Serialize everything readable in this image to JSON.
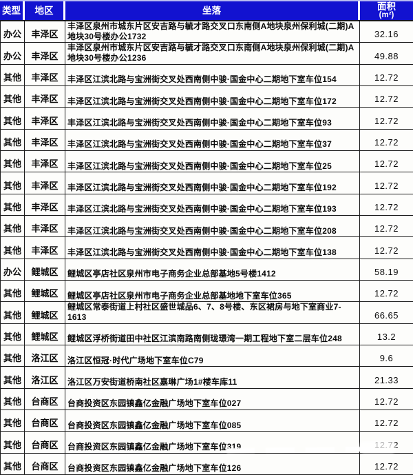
{
  "colors": {
    "header_bg": "#1212d0",
    "header_text": "#ffffff",
    "grid": "#1c1c1c",
    "body_bg": "#fdfdfb",
    "text": "#0b0b0b"
  },
  "table": {
    "header": {
      "type": "类型",
      "district": "地区",
      "location": "坐落",
      "area_line1": "面积",
      "area_line2": "(m²)"
    },
    "rows": [
      {
        "type": "办公",
        "district": "丰泽区",
        "location": "丰泽区泉州市城东片区安吉路与毓才路交叉口东南侧A地块泉州保利城(二期)A地块30号楼办公1732",
        "area": "32.16"
      },
      {
        "type": "办公",
        "district": "丰泽区",
        "location": "丰泽区泉州市城东片区安吉路与毓才路交叉口东南侧A地块泉州保利城(二期)A地块30号楼办公1236",
        "area": "49.88"
      },
      {
        "type": "其他",
        "district": "丰泽区",
        "location": "丰泽区江滨北路与宝洲街交叉处西南侧中骏·国金中心二期地下室车位154",
        "area": "12.72"
      },
      {
        "type": "其他",
        "district": "丰泽区",
        "location": "丰泽区江滨北路与宝洲街交叉处西南侧中骏·国金中心二期地下室车位172",
        "area": "12.72"
      },
      {
        "type": "其他",
        "district": "丰泽区",
        "location": "丰泽区江滨北路与宝洲街交叉处西南侧中骏·国金中心二期地下室车位93",
        "area": "12.72"
      },
      {
        "type": "其他",
        "district": "丰泽区",
        "location": "丰泽区江滨北路与宝洲街交叉处西南侧中骏·国金中心二期地下室车位37",
        "area": "12.72"
      },
      {
        "type": "其他",
        "district": "丰泽区",
        "location": "丰泽区江滨北路与宝洲街交叉处西南侧中骏·国金中心二期地下室车位25",
        "area": "12.72"
      },
      {
        "type": "其他",
        "district": "丰泽区",
        "location": "丰泽区江滨北路与宝洲街交叉处西南侧中骏·国金中心二期地下室车位192",
        "area": "12.72"
      },
      {
        "type": "其他",
        "district": "丰泽区",
        "location": "丰泽区江滨北路与宝洲街交叉处西南侧中骏·国金中心二期地下室车位193",
        "area": "12.72"
      },
      {
        "type": "其他",
        "district": "丰泽区",
        "location": "丰泽区江滨北路与宝洲街交叉处西南侧中骏·国金中心二期地下室车位208",
        "area": "12.72"
      },
      {
        "type": "其他",
        "district": "丰泽区",
        "location": "丰泽区江滨北路与宝洲街交叉处西南侧中骏·国金中心二期地下室车位138",
        "area": "12.72"
      },
      {
        "type": "办公",
        "district": "鲤城区",
        "location": "鲤城区亭店社区泉州市电子商务企业总部基地5号楼1412",
        "area": "58.19"
      },
      {
        "type": "其他",
        "district": "鲤城区",
        "location": "鲤城区亭店社区泉州市电子商务企业总部基地地下室车位365",
        "area": "12.72"
      },
      {
        "type": "其他",
        "district": "鲤城区",
        "location": "鲤城区常泰街道上村社区盛世城品6、7、8号楼、东区裙房与地下室商业7-1613",
        "area": "66.65"
      },
      {
        "type": "其他",
        "district": "鲤城区",
        "location": "鲤城区浮桥街道田中社区江滨南路南侧珑璟湾一期工程地下室二层车位248",
        "area": "13.2"
      },
      {
        "type": "其他",
        "district": "洛江区",
        "location": "洛江区恒冠·时代广场地下室车位C79",
        "area": "9.6"
      },
      {
        "type": "其他",
        "district": "洛江区",
        "location": "洛江区万安街道桥南社区嘉琳广场1#楼车库11",
        "area": "21.33"
      },
      {
        "type": "其他",
        "district": "台商区",
        "location": "台商投资区东园镇鑫亿金融广场地下室车位027",
        "area": "12.72"
      },
      {
        "type": "其他",
        "district": "台商区",
        "location": "台商投资区东园镇鑫亿金融广场地下室车位085",
        "area": "12.72"
      },
      {
        "type": "其他",
        "district": "台商区",
        "location": "台商投资区东园镇鑫亿金融广场地下室车位319",
        "area": "12.72"
      },
      {
        "type": "其他",
        "district": "台商区",
        "location": "台商投资区东园镇鑫亿金融广场地下室车位126",
        "area": "12.72"
      }
    ]
  },
  "artifacts": {
    "smudge_note": "white scan smudge over area value of row 20"
  }
}
